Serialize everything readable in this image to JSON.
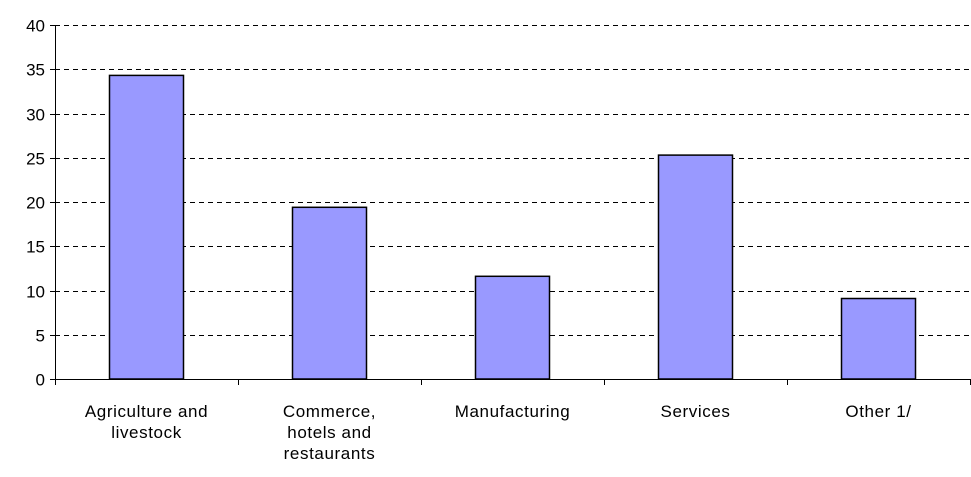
{
  "chart_data": {
    "type": "bar",
    "title": "",
    "xlabel": "",
    "ylabel": "",
    "categories": [
      [
        "Agriculture and",
        "livestock"
      ],
      [
        "Commerce,",
        "hotels and",
        "restaurants"
      ],
      [
        "Manufacturing"
      ],
      [
        "Services"
      ],
      [
        "Other 1/"
      ]
    ],
    "values": [
      34.3,
      19.4,
      11.6,
      25.3,
      9.1
    ],
    "ylim": [
      0,
      40
    ],
    "yticks": [
      "0",
      "5",
      "10",
      "15",
      "20",
      "25",
      "30",
      "35",
      "40"
    ],
    "grid": "dashed horizontal",
    "legend": "none",
    "bar_color": "#9999ff",
    "bar_stroke": "#000000"
  }
}
